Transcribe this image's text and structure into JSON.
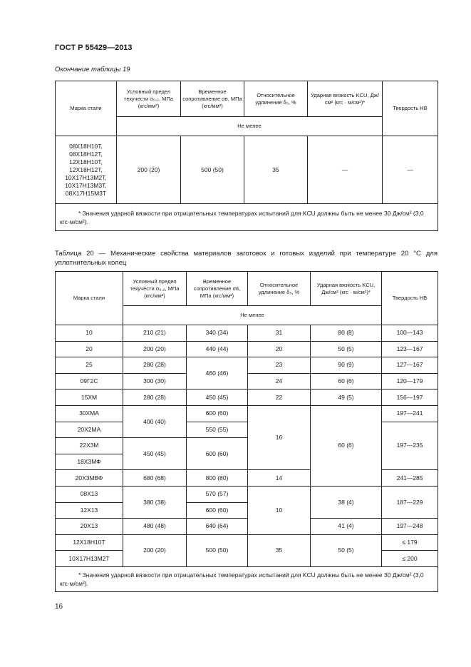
{
  "doc_header": "ГОСТ Р 55429—2013",
  "table19": {
    "continuation_label": "Окончание таблицы 19",
    "headers": [
      "Марка стали",
      "Условный предел текучести σ₀,₂, МПа (кгс/мм²)",
      "Временное сопротивление σв, МПа (кгс/мм²)",
      "Относительное удлинение δ₅, %",
      "Ударная вязкость KCU, Дж/см² (кгс · м/см²)*",
      "Твердость НВ"
    ],
    "subheader": "Не менее",
    "row": [
      "08Х18Н10Т,\n08Х18Н12Т,\n12Х18Н10Т,\n12Х18Н12Т,\n10Х17Н13М2Т,\n10Х17Н13М3Т,\n08Х17Н15М3Т",
      "200 (20)",
      "500 (50)",
      "35",
      "—",
      "—"
    ],
    "footnote": "* Значения ударной вязкости при отрицательных температурах испытаний для KCU должны быть не менее 30 Дж/см² (3,0 кгс·м/см²)."
  },
  "table20": {
    "caption": "Таблица 20 — Механические свойства материалов заготовок и готовых изделий при температуре 20 °С для уплотнительных колец",
    "headers": [
      "Марка стали",
      "Условный предел текучести σ₀,₂, МПа (кгс/мм²)",
      "Временное сопротивление σв, МПа (кгс/мм²)",
      "Относительное удлинение δ₅, %",
      "Ударная вязкость KCU, Дж/см² (кгс · м/см²)*",
      "Твердость НВ"
    ],
    "subheader": "Не менее",
    "rows": [
      [
        {
          "t": "10"
        },
        {
          "t": "210 (21)"
        },
        {
          "t": "340 (34)"
        },
        {
          "t": "31"
        },
        {
          "t": "80 (8)"
        },
        {
          "t": "100—143"
        }
      ],
      [
        {
          "t": "20"
        },
        {
          "t": "200 (20)"
        },
        {
          "t": "440 (44)"
        },
        {
          "t": "20"
        },
        {
          "t": "50 (5)"
        },
        {
          "t": "123—167"
        }
      ],
      [
        {
          "t": "25"
        },
        {
          "t": "280 (28)"
        },
        {
          "t": "460 (46)",
          "rs": 2
        },
        {
          "t": "23"
        },
        {
          "t": "90 (9)"
        },
        {
          "t": "127—167"
        }
      ],
      [
        {
          "t": "09Г2С"
        },
        {
          "t": "300 (30)"
        },
        {
          "t": "24"
        },
        {
          "t": "60 (6)"
        },
        {
          "t": "120—179"
        }
      ],
      [
        {
          "t": "15ХМ"
        },
        {
          "t": "280 (28)"
        },
        {
          "t": "450 (45)"
        },
        {
          "t": "22"
        },
        {
          "t": "49 (5)"
        },
        {
          "t": "156—197"
        }
      ],
      [
        {
          "t": "30ХМА"
        },
        {
          "t": "400 (40)",
          "rs": 2
        },
        {
          "t": "600 (60)"
        },
        {
          "t": "16",
          "rs": 4
        },
        {
          "t": "60 (6)",
          "rs": 5
        },
        {
          "t": "197—241"
        }
      ],
      [
        {
          "t": "20Х2МА"
        },
        {
          "t": "550 (55)"
        },
        {
          "t": "197—235",
          "rs": 3
        }
      ],
      [
        {
          "t": "22Х3М"
        },
        {
          "t": "450 (45)",
          "rs": 2
        },
        {
          "t": "600 (60)",
          "rs": 2
        }
      ],
      [
        {
          "t": "18Х3МФ"
        }
      ],
      [
        {
          "t": "20Х3МВФ"
        },
        {
          "t": "680 (68)"
        },
        {
          "t": "800 (80)"
        },
        {
          "t": "14"
        },
        {
          "t": "241—285"
        }
      ],
      [
        {
          "t": "08Х13"
        },
        {
          "t": "380 (38)",
          "rs": 2
        },
        {
          "t": "570 (57)"
        },
        {
          "t": "10",
          "rs": 3
        },
        {
          "t": "38 (4)",
          "rs": 2
        },
        {
          "t": "187—229",
          "rs": 2
        }
      ],
      [
        {
          "t": "12Х13"
        },
        {
          "t": "600 (60)"
        }
      ],
      [
        {
          "t": "20Х13"
        },
        {
          "t": "480 (48)"
        },
        {
          "t": "640 (64)"
        },
        {
          "t": "41 (4)"
        },
        {
          "t": "197—248"
        }
      ],
      [
        {
          "t": "12Х18Н10Т"
        },
        {
          "t": "200 (20)",
          "rs": 2
        },
        {
          "t": "500 (50)",
          "rs": 2
        },
        {
          "t": "35",
          "rs": 2
        },
        {
          "t": "50 (5)",
          "rs": 2
        },
        {
          "t": "≤ 179"
        }
      ],
      [
        {
          "t": "10Х17Н13М2Т"
        },
        {
          "t": "≤ 200"
        }
      ]
    ],
    "footnote": "* Значения ударной вязкости при отрицательных температурах испытаний для KCU должны быть не менее 30 Дж/см² (3,0 кгс·м/см²)."
  },
  "page_number": "16"
}
